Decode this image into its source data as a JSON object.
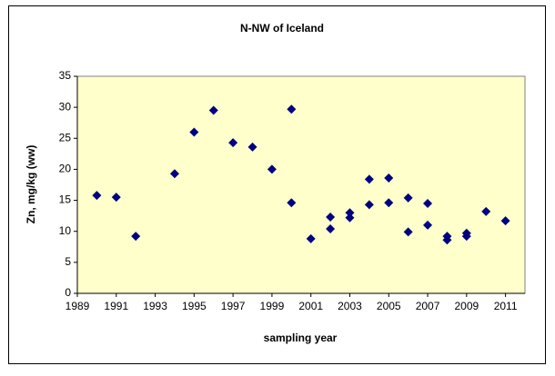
{
  "chart_data": {
    "type": "scatter",
    "title": "N-NW of Iceland",
    "x_label": "sampling year",
    "y_label": "Zn, mg/kg (ww)",
    "x": [
      1990,
      1991,
      1992,
      1994,
      1995,
      1996,
      1997,
      1998,
      1999,
      2000,
      2000,
      2001,
      2002,
      2002,
      2003,
      2003,
      2004,
      2004,
      2005,
      2005,
      2006,
      2006,
      2007,
      2007,
      2008,
      2008,
      2009,
      2009,
      2010,
      2011
    ],
    "values": [
      15.8,
      15.5,
      9.2,
      19.3,
      26,
      29.5,
      24.3,
      23.6,
      20,
      29.7,
      14.6,
      8.8,
      12.3,
      10.4,
      13.0,
      12.2,
      18.4,
      14.3,
      18.6,
      14.6,
      15.4,
      9.9,
      14.5,
      11.0,
      9.2,
      8.6,
      9.7,
      9.2,
      13.2,
      11.7
    ],
    "color": "#000080",
    "plot_background": "#ffffcc",
    "xlim": [
      1989,
      2012
    ],
    "xticks": [
      1989,
      1991,
      1993,
      1995,
      1997,
      1999,
      2001,
      2003,
      2005,
      2007,
      2009,
      2011
    ],
    "ylim": [
      0,
      35
    ],
    "yticks": [
      0,
      5,
      10,
      15,
      20,
      25,
      30,
      35
    ]
  }
}
